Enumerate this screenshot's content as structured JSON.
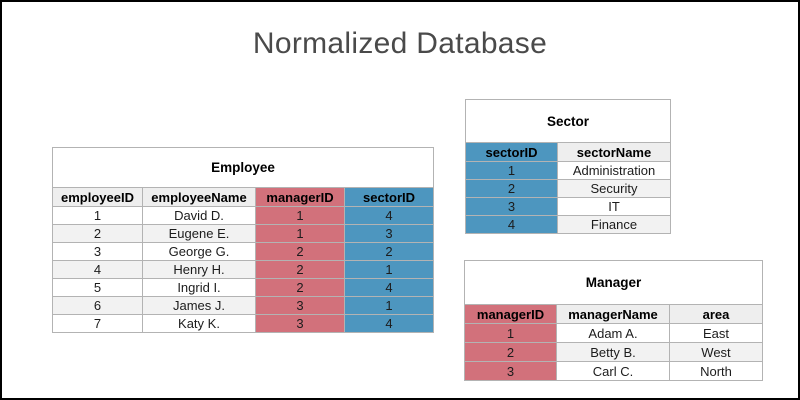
{
  "page": {
    "title": "Normalized Database"
  },
  "colors": {
    "accent_red": "#d2717b",
    "accent_blue": "#4d96bf",
    "header_gray": "#eeeeee",
    "row_alt_gray": "#f2f2f2",
    "border_gray": "#b3b3b3",
    "title_text": "#4a4a4a",
    "frame": "#000000"
  },
  "tables": [
    {
      "id": "employee",
      "title": "Employee",
      "columns": [
        {
          "label": "employeeID",
          "accent": "none"
        },
        {
          "label": "employeeName",
          "accent": "none"
        },
        {
          "label": "managerID",
          "accent": "red"
        },
        {
          "label": "sectorID",
          "accent": "blue"
        }
      ],
      "rows": [
        [
          "1",
          "David D.",
          "1",
          "4"
        ],
        [
          "2",
          "Eugene E.",
          "1",
          "3"
        ],
        [
          "3",
          "George G.",
          "2",
          "2"
        ],
        [
          "4",
          "Henry H.",
          "2",
          "1"
        ],
        [
          "5",
          "Ingrid I.",
          "2",
          "4"
        ],
        [
          "6",
          "James J.",
          "3",
          "1"
        ],
        [
          "7",
          "Katy K.",
          "3",
          "4"
        ]
      ]
    },
    {
      "id": "sector",
      "title": "Sector",
      "columns": [
        {
          "label": "sectorID",
          "accent": "blue"
        },
        {
          "label": "sectorName",
          "accent": "none"
        }
      ],
      "rows": [
        [
          "1",
          "Administration"
        ],
        [
          "2",
          "Security"
        ],
        [
          "3",
          "IT"
        ],
        [
          "4",
          "Finance"
        ]
      ]
    },
    {
      "id": "manager",
      "title": "Manager",
      "columns": [
        {
          "label": "managerID",
          "accent": "red"
        },
        {
          "label": "managerName",
          "accent": "none"
        },
        {
          "label": "area",
          "accent": "none"
        }
      ],
      "rows": [
        [
          "1",
          "Adam A.",
          "East"
        ],
        [
          "2",
          "Betty B.",
          "West"
        ],
        [
          "3",
          "Carl C.",
          "North"
        ]
      ]
    }
  ]
}
